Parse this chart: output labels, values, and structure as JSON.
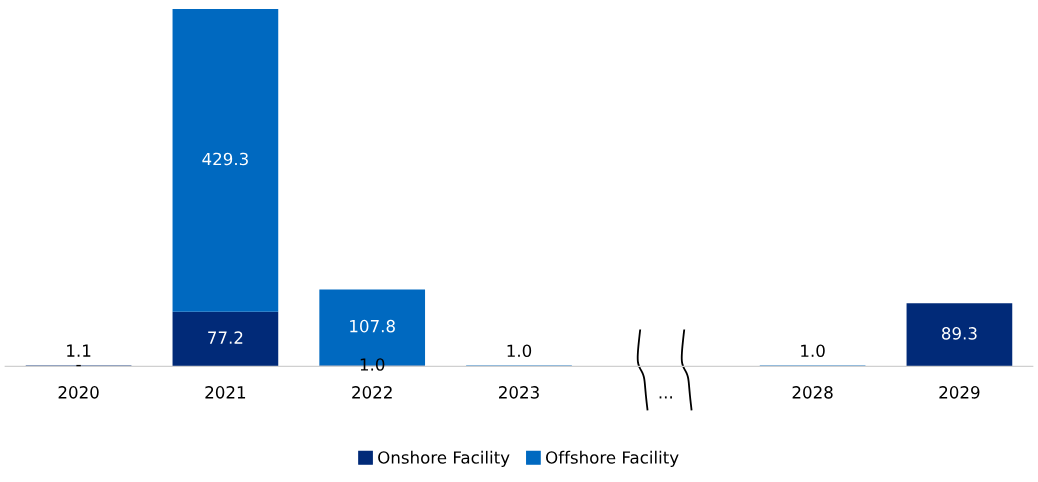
{
  "chart_data": {
    "type": "bar",
    "stacked": true,
    "categories": [
      "2020",
      "2021",
      "2022",
      "2023",
      "...",
      "2028",
      "2029"
    ],
    "series": [
      {
        "name": "Onshore Facility",
        "color": "#012a78",
        "values": [
          1.1,
          77.2,
          1.0,
          null,
          null,
          null,
          89.3
        ],
        "value_labels": [
          "1.1",
          "77.2",
          "1.0",
          null,
          null,
          null,
          "89.3"
        ]
      },
      {
        "name": "Offshore Facility",
        "color": "#0069c0",
        "values": [
          0,
          429.3,
          107.8,
          1.0,
          null,
          1.0,
          null
        ],
        "value_labels": [
          "-",
          "429.3",
          "107.8",
          "1.0",
          null,
          "1.0",
          null
        ]
      }
    ],
    "legend": "bottom",
    "grid": false
  }
}
